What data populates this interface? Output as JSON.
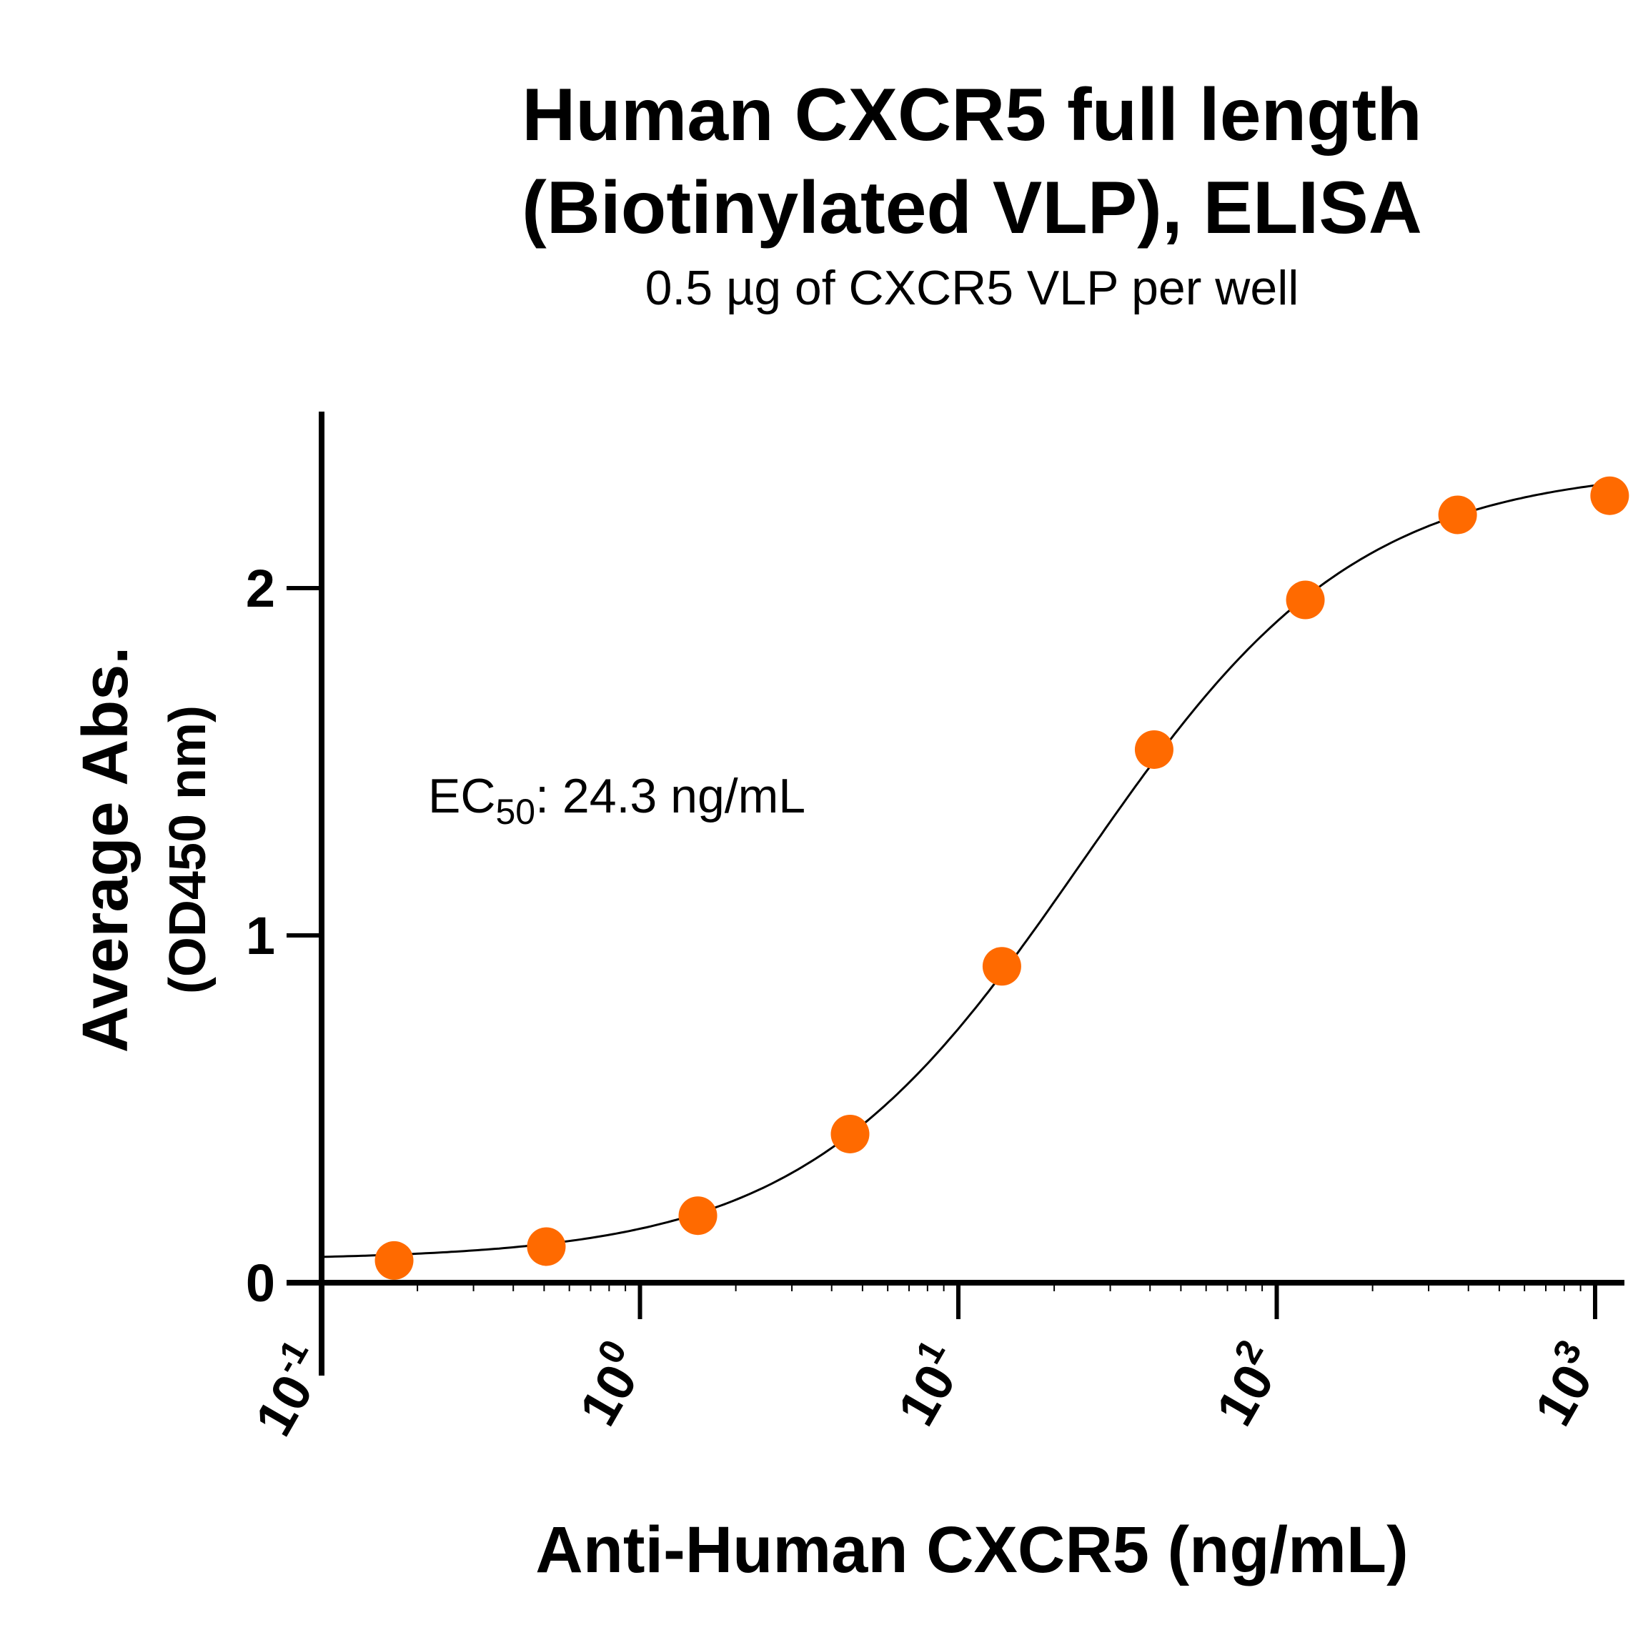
{
  "chart_data": {
    "type": "scatter",
    "title_line1": "Human CXCR5 full length",
    "title_line2": "(Biotinylated VLP), ELISA",
    "subtitle": "0.5 µg of CXCR5 VLP per well",
    "xlabel": "Anti-Human CXCR5 (ng/mL)",
    "ylabel_line1": "Average Abs.",
    "ylabel_line2": "(OD450 nm)",
    "x_scale": "log",
    "xlim": [
      0.1,
      1300
    ],
    "ylim": [
      0,
      2.5
    ],
    "x_ticks": [
      {
        "base": "10",
        "exp": "-1",
        "value": 0.1
      },
      {
        "base": "10",
        "exp": "0",
        "value": 1
      },
      {
        "base": "10",
        "exp": "1",
        "value": 10
      },
      {
        "base": "10",
        "exp": "2",
        "value": 100
      },
      {
        "base": "10",
        "exp": "3",
        "value": 1000
      }
    ],
    "y_ticks": [
      {
        "label": "0",
        "value": 0
      },
      {
        "label": "1",
        "value": 1
      },
      {
        "label": "2",
        "value": 2
      }
    ],
    "grid": false,
    "annotation": {
      "prefix": "EC",
      "subscript": "50",
      "suffix": ": 24.3 ng/mL"
    },
    "point_color": "#FF6A00",
    "points": [
      {
        "x": 0.169,
        "y": 0.064
      },
      {
        "x": 0.508,
        "y": 0.104
      },
      {
        "x": 1.52,
        "y": 0.193
      },
      {
        "x": 4.57,
        "y": 0.428
      },
      {
        "x": 13.7,
        "y": 0.911
      },
      {
        "x": 41.2,
        "y": 1.535
      },
      {
        "x": 123,
        "y": 1.966
      },
      {
        "x": 370,
        "y": 2.211
      },
      {
        "x": 1111,
        "y": 2.266
      }
    ],
    "fit_curve": {
      "model": "4PL",
      "bottom": 0.065,
      "top": 2.35,
      "ec50": 24.3,
      "hill": 1.0,
      "x_range": [
        0.1,
        1200
      ]
    }
  }
}
